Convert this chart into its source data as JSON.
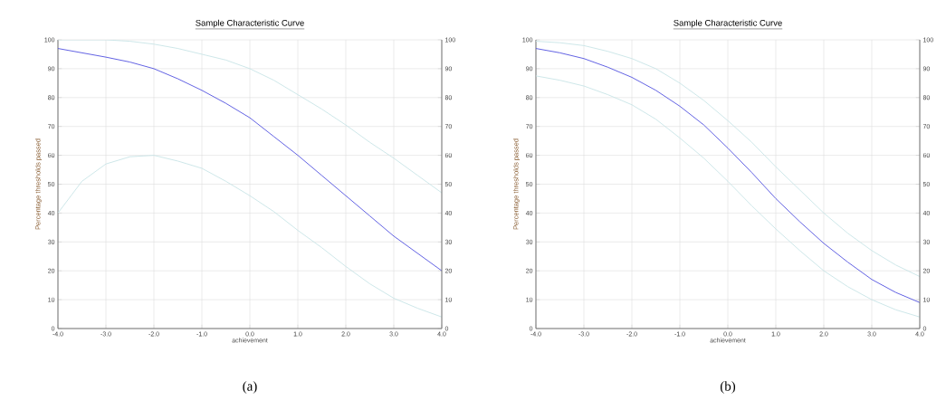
{
  "chart_data": [
    {
      "type": "line",
      "title": "Sample Characteristic Curve",
      "xlabel": "achievement",
      "ylabel": "Percentage thresholds passed",
      "annotations": [
        "(a)"
      ],
      "x": [
        -4,
        -3.5,
        -3,
        -2.5,
        -2,
        -1.5,
        -1,
        -0.5,
        0,
        0.5,
        1,
        1.5,
        2,
        2.5,
        3,
        3.5,
        4
      ],
      "series": [
        {
          "color": "#c8e4e6",
          "values": [
            100,
            100,
            100,
            99.5,
            98.5,
            97,
            95,
            93,
            90,
            86,
            81,
            76,
            70.5,
            64.5,
            59,
            53,
            47
          ]
        },
        {
          "color": "#c8e4e6",
          "values": [
            40,
            51,
            57,
            59.5,
            60,
            58,
            55.5,
            51,
            46,
            40.5,
            34,
            28,
            21.5,
            15.5,
            10.5,
            7,
            4
          ]
        },
        {
          "color": "#5050e0",
          "values": [
            97,
            95.5,
            94,
            92.3,
            90,
            86.5,
            82.5,
            78,
            73,
            66.5,
            60,
            53,
            46,
            39,
            32,
            26,
            20
          ]
        }
      ],
      "xlim": [
        -4,
        4
      ],
      "ylim": [
        0,
        100
      ],
      "y2lim": [
        0,
        100
      ],
      "xticks": [
        {
          "value": -4,
          "label": "-4.0"
        },
        {
          "value": -3,
          "label": "-3.0"
        },
        {
          "value": -2,
          "label": "-2.0"
        },
        {
          "value": -1,
          "label": "-1.0"
        },
        {
          "value": 0,
          "label": "0.0"
        },
        {
          "value": 1,
          "label": "1.0"
        },
        {
          "value": 2,
          "label": "2.0"
        },
        {
          "value": 3,
          "label": "3.0"
        },
        {
          "value": 4,
          "label": "4.0"
        }
      ],
      "yticks": [
        0,
        10,
        20,
        30,
        40,
        50,
        60,
        70,
        80,
        90,
        100
      ],
      "y2ticks": [
        0,
        10,
        20,
        30,
        40,
        50,
        60,
        70,
        80,
        90,
        100
      ],
      "grid": true,
      "marker": "none",
      "line_style": "solid"
    },
    {
      "type": "line",
      "title": "Sample Characteristic Curve",
      "xlabel": "achievement",
      "ylabel": "Percentage thresholds passed",
      "annotations": [
        "(b)"
      ],
      "x": [
        -4,
        -3.5,
        -3,
        -2.5,
        -2,
        -1.5,
        -1,
        -0.5,
        0,
        0.5,
        1,
        1.5,
        2,
        2.5,
        3,
        3.5,
        4
      ],
      "series": [
        {
          "color": "#c8e4e6",
          "values": [
            99.5,
            99,
            98,
            96,
            93.5,
            90,
            85,
            79,
            72,
            64.5,
            56,
            48,
            40,
            33,
            27,
            22,
            18
          ]
        },
        {
          "color": "#c8e4e6",
          "values": [
            87.5,
            86,
            84,
            81,
            77.5,
            72.5,
            66,
            59,
            51,
            42.5,
            34.5,
            27,
            20,
            14.5,
            10,
            6.5,
            4
          ]
        },
        {
          "color": "#5050e0",
          "values": [
            97,
            95.5,
            93.5,
            90.5,
            87,
            82.5,
            77,
            70.5,
            62.5,
            54,
            45,
            37,
            29.5,
            23,
            17,
            12.5,
            9
          ]
        }
      ],
      "xlim": [
        -4,
        4
      ],
      "ylim": [
        0,
        100
      ],
      "y2lim": [
        0,
        100
      ],
      "xticks": [
        {
          "value": -4,
          "label": "-4.0"
        },
        {
          "value": -3,
          "label": "-3.0"
        },
        {
          "value": -2,
          "label": "-2.0"
        },
        {
          "value": -1,
          "label": "-1.0"
        },
        {
          "value": 0,
          "label": "0.0"
        },
        {
          "value": 1,
          "label": "1.0"
        },
        {
          "value": 2,
          "label": "2.0"
        },
        {
          "value": 3,
          "label": "3.0"
        },
        {
          "value": 4,
          "label": "4.0"
        }
      ],
      "yticks": [
        0,
        10,
        20,
        30,
        40,
        50,
        60,
        70,
        80,
        90,
        100
      ],
      "y2ticks": [
        0,
        10,
        20,
        30,
        40,
        50,
        60,
        70,
        80,
        90,
        100
      ],
      "grid": true,
      "marker": "none",
      "line_style": "solid"
    }
  ]
}
